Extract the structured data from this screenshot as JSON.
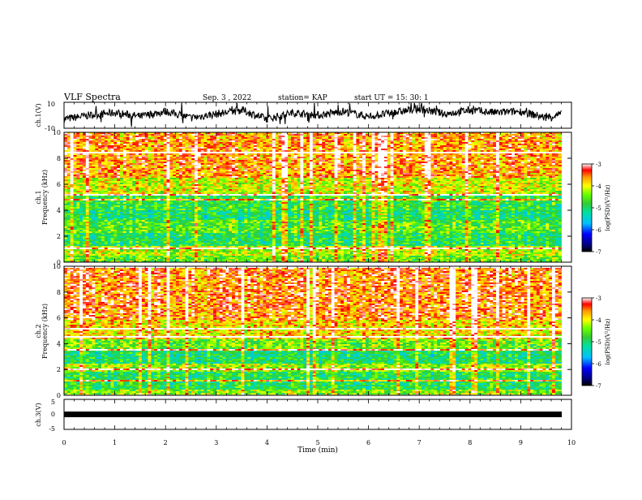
{
  "header": {
    "title": "VLF Spectra",
    "date": "Sep. 3 , 2022",
    "station": "station= KAP",
    "start": "start UT = 15: 30: 1"
  },
  "colors": {
    "trace": "#000000",
    "colormap": [
      "#000080",
      "#0000ff",
      "#00bfff",
      "#00e0a0",
      "#33cc33",
      "#66ff00",
      "#ffff00",
      "#ff9900",
      "#ff0000",
      "#ffffff"
    ]
  },
  "chart_data": [
    {
      "type": "line",
      "panel": "ch1",
      "ylabel": "ch.1(V)",
      "ylim": [
        -10,
        10
      ],
      "yticks": [
        "10",
        "-10"
      ],
      "xlim": [
        0,
        10
      ],
      "note_values": "waveform amplitude oscillating roughly between -8 and 8 V over the record",
      "series": [
        {
          "x": [
            0,
            0.5,
            1,
            1.5,
            2,
            2.5,
            3,
            3.5,
            4,
            4.5,
            5,
            5.5,
            6,
            6.5,
            7,
            7.5,
            8,
            8.5,
            9,
            9.5,
            9.8
          ],
          "values": [
            -3,
            0,
            2,
            -1,
            3,
            -2,
            1,
            4,
            -3,
            2,
            0,
            3,
            -1,
            2,
            5,
            1,
            4,
            2,
            3,
            -2,
            1
          ]
        }
      ]
    },
    {
      "type": "heatmap",
      "panel": "ch1-spectrogram",
      "ylabel": "ch.1\nFrequency (kHz)",
      "ylabel_lines": [
        "ch.1",
        "Frequency (kHz)"
      ],
      "yticks": [
        "0",
        "2",
        "4",
        "6",
        "8",
        "10"
      ],
      "ylim": [
        0,
        10
      ],
      "xlim": [
        0,
        9.8
      ],
      "colorbar": {
        "label": "log(PSD)(V²/Hz)",
        "ticks": [
          "-3",
          "-4",
          "-5",
          "-6",
          "-7"
        ],
        "range": [
          -7,
          -3
        ]
      },
      "bands_khz": [
        {
          "from": 0.0,
          "to": 0.5,
          "level": -4.5
        },
        {
          "from": 0.5,
          "to": 1.2,
          "level": -4.2
        },
        {
          "from": 1.2,
          "to": 2.3,
          "level": -4.9
        },
        {
          "from": 2.3,
          "to": 3.3,
          "level": -4.6
        },
        {
          "from": 3.3,
          "to": 4.0,
          "level": -5.0
        },
        {
          "from": 4.0,
          "to": 5.1,
          "level": -4.8
        },
        {
          "from": 5.1,
          "to": 6.5,
          "level": -4.1
        },
        {
          "from": 6.5,
          "to": 10.0,
          "level": -3.6
        }
      ]
    },
    {
      "type": "heatmap",
      "panel": "ch2-spectrogram",
      "ylabel": "ch.2\nFrequency (kHz)",
      "ylabel_lines": [
        "ch.2",
        "Frequency (kHz)"
      ],
      "yticks": [
        "0",
        "2",
        "4",
        "6",
        "8",
        "10"
      ],
      "ylim": [
        0,
        10
      ],
      "xlim": [
        0,
        9.8
      ],
      "colorbar": {
        "label": "log(PSD)(V²/Hz)",
        "ticks": [
          "-3",
          "-4",
          "-5",
          "-6",
          "-7"
        ],
        "range": [
          -7,
          -3
        ]
      },
      "bands_khz": [
        {
          "from": 0.0,
          "to": 0.5,
          "level": -4.4
        },
        {
          "from": 0.5,
          "to": 1.8,
          "level": -4.9
        },
        {
          "from": 1.8,
          "to": 2.4,
          "level": -4.3
        },
        {
          "from": 2.4,
          "to": 3.5,
          "level": -5.0
        },
        {
          "from": 3.5,
          "to": 4.4,
          "level": -4.5
        },
        {
          "from": 4.4,
          "to": 5.8,
          "level": -3.9
        },
        {
          "from": 5.8,
          "to": 10.0,
          "level": -3.5
        }
      ]
    },
    {
      "type": "line",
      "panel": "ch3",
      "ylabel": "ch.3(V)",
      "ylim": [
        -5,
        5
      ],
      "yticks": [
        "5",
        "0",
        "-5"
      ],
      "xlim": [
        0,
        10
      ],
      "xlabel": "Time (min)",
      "xticks": [
        "0",
        "1",
        "2",
        "3",
        "4",
        "5",
        "6",
        "7",
        "8",
        "9",
        "10"
      ],
      "series": [
        {
          "x": [
            0,
            9.8
          ],
          "values": [
            0,
            0
          ]
        }
      ]
    }
  ]
}
